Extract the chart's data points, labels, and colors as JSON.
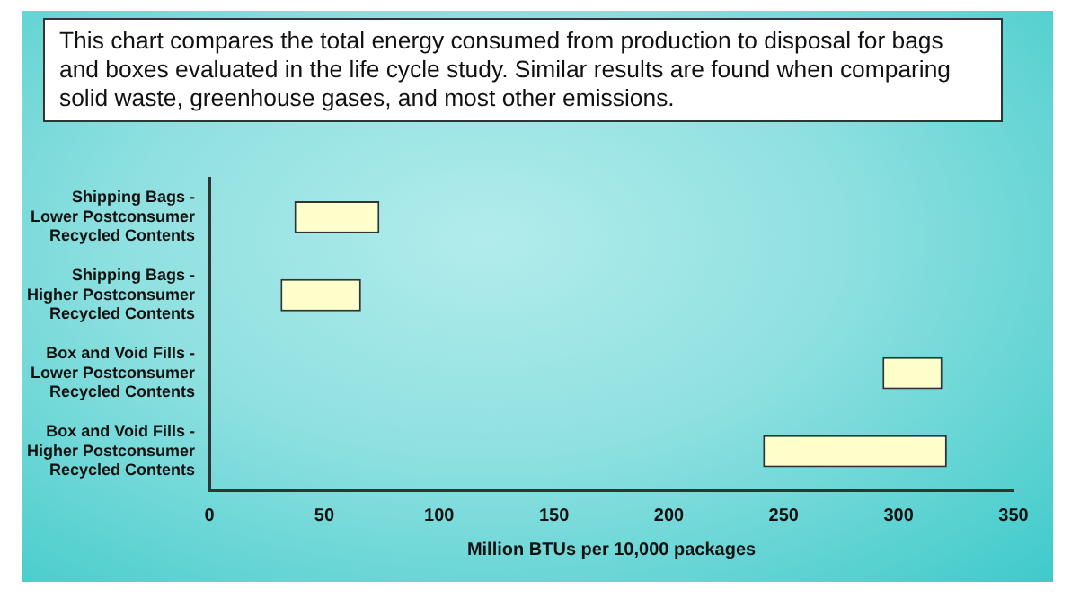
{
  "chart_data": {
    "type": "bar",
    "orientation": "horizontal",
    "title": "This chart compares the total energy consumed from production to disposal for bags and boxes evaluated in the life cycle study.  Similar results are found when comparing solid waste, greenhouse gases, and most other emissions.",
    "categories": [
      "Shipping Bags - Lower Postconsumer Recycled Contents",
      "Shipping Bags - Higher Postconsumer Recycled Contents",
      "Box and Void Fills - Lower Postconsumer Recycled Contents",
      "Box and Void Fills - Higher Postconsumer Recycled Contents"
    ],
    "base": [
      37,
      31,
      293,
      241
    ],
    "values": [
      37,
      35,
      26,
      80
    ],
    "color": "#ffffcc",
    "xlabel": "Million BTUs per 10,000 packages",
    "xlim": [
      0,
      350
    ],
    "xticks": [
      0,
      50,
      100,
      150,
      200,
      250,
      300,
      350
    ],
    "grid": false,
    "legend": false
  }
}
